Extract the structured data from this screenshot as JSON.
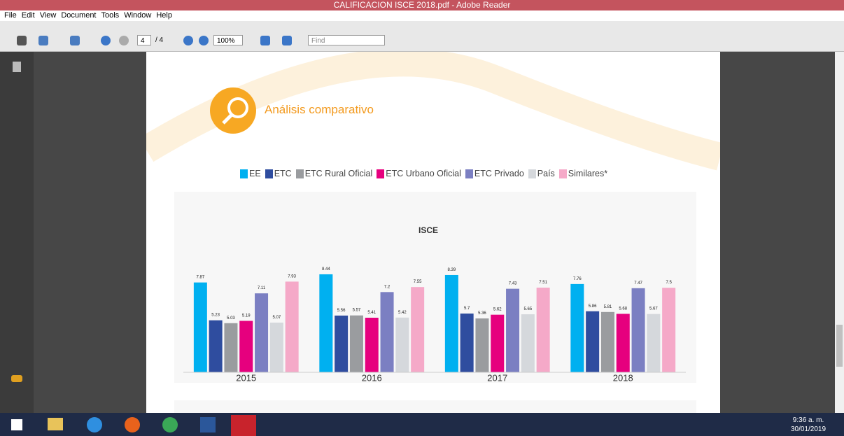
{
  "window": {
    "title": "CALIFICACION ISCE 2018.pdf - Adobe Reader",
    "menu": [
      "File",
      "Edit",
      "View",
      "Document",
      "Tools",
      "Window",
      "Help"
    ],
    "toolbar": {
      "page": "4",
      "page_total": "/ 4",
      "zoom": "100%",
      "find": "Find"
    }
  },
  "document": {
    "heading": "Análisis comparativo"
  },
  "chart_data": {
    "type": "bar",
    "title": "ISCE",
    "categories": [
      "2015",
      "2016",
      "2017",
      "2018"
    ],
    "series": [
      {
        "name": "EE",
        "color": "#00b0f0",
        "values": [
          7.87,
          8.44,
          8.39,
          7.76
        ]
      },
      {
        "name": "ETC",
        "color": "#2f4d9f",
        "values": [
          5.23,
          5.56,
          5.7,
          5.86
        ]
      },
      {
        "name": "ETC Rural Oficial",
        "color": "#9a9c9f",
        "values": [
          5.03,
          5.57,
          5.36,
          5.81
        ]
      },
      {
        "name": "ETC Urbano Oficial",
        "color": "#e6007e",
        "values": [
          5.19,
          5.41,
          5.62,
          5.68
        ]
      },
      {
        "name": "ETC Privado",
        "color": "#7b7fc2",
        "values": [
          7.11,
          7.2,
          7.43,
          7.47
        ]
      },
      {
        "name": "País",
        "color": "#d5d8dc",
        "values": [
          5.07,
          5.42,
          5.65,
          5.67
        ]
      },
      {
        "name": "Similares*",
        "color": "#f5a9c8",
        "values": [
          7.93,
          7.55,
          7.51,
          7.5
        ]
      }
    ],
    "ylim": [
      1.6,
      10
    ]
  },
  "taskbar": {
    "time": "9:36 a. m.",
    "date": "30/01/2019"
  }
}
